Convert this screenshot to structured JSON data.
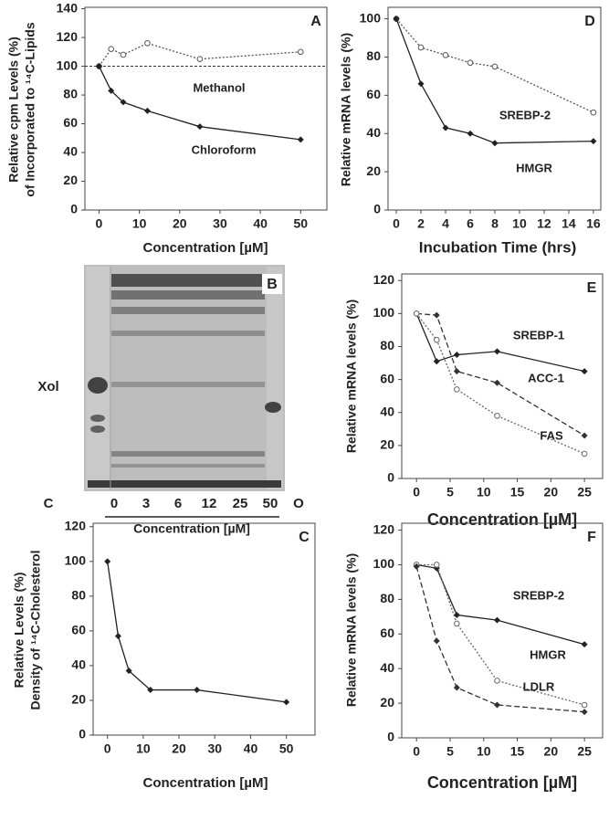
{
  "chart_data": [
    {
      "type": "line",
      "panel": "A",
      "ylabel": [
        "Relative cpm Levels (%)",
        "of Incorporated to ¹⁴C-Lipids"
      ],
      "xlabel": "Concentration [µM]",
      "x": [
        0,
        3,
        6,
        12,
        25,
        50
      ],
      "xlim": [
        -3.5,
        56.5
      ],
      "xticks": [
        0,
        10,
        20,
        30,
        40,
        50
      ],
      "ylim": [
        0,
        141
      ],
      "yticks": [
        0,
        20,
        40,
        60,
        80,
        100,
        120,
        140
      ],
      "reference_line": 100,
      "series": [
        {
          "name": "Methanol",
          "color": "#555555",
          "line_style": "dotted",
          "marker": "circle-open",
          "values": [
            100,
            112,
            108,
            116,
            105,
            110
          ]
        },
        {
          "name": "Chloroform",
          "color": "#222222",
          "line_style": "solid",
          "marker": "diamond-filled",
          "values": [
            100,
            83,
            75,
            69,
            58,
            49
          ]
        }
      ]
    },
    {
      "type": "gel",
      "panel": "B",
      "band_label": "Xol",
      "lanes": [
        "C",
        "0",
        "3",
        "6",
        "12",
        "25",
        "50",
        "O"
      ],
      "xlabel": "Concentration [µM]"
    },
    {
      "type": "line",
      "panel": "C",
      "ylabel": [
        "Relative Levels (%)",
        "Density of ¹⁴C-Cholesterol"
      ],
      "xlabel": "Concentration [µM]",
      "x": [
        0,
        3,
        6,
        12,
        25,
        50
      ],
      "xlim": [
        -4,
        58
      ],
      "xticks": [
        0,
        10,
        20,
        30,
        40,
        50
      ],
      "ylim": [
        0,
        122
      ],
      "yticks": [
        0,
        20,
        40,
        60,
        80,
        100,
        120
      ],
      "series": [
        {
          "name": null,
          "color": "#222222",
          "line_style": "solid",
          "marker": "diamond-filled",
          "values": [
            100,
            57,
            37,
            26,
            26,
            19
          ]
        }
      ]
    },
    {
      "type": "line",
      "panel": "D",
      "ylabel": [
        "Relative mRNA levels (%)"
      ],
      "xlabel": "Incubation Time (hrs)",
      "x": [
        0,
        2,
        4,
        6,
        8,
        16
      ],
      "xlim": [
        -0.67,
        16.6
      ],
      "xticks": [
        0,
        2,
        4,
        6,
        8,
        10,
        12,
        14,
        16
      ],
      "ylim": [
        0,
        106
      ],
      "yticks": [
        0,
        20,
        40,
        60,
        80,
        100
      ],
      "series": [
        {
          "name": "SREBP-2",
          "color": "#555555",
          "line_style": "dotted",
          "marker": "circle-open",
          "values": [
            100,
            85,
            81,
            77,
            75,
            51
          ]
        },
        {
          "name": "HMGR",
          "color": "#222222",
          "line_style": "solid",
          "marker": "diamond-filled",
          "values": [
            100,
            66,
            43,
            40,
            35,
            36
          ]
        }
      ]
    },
    {
      "type": "line",
      "panel": "E",
      "ylabel": [
        "Relative mRNA levels (%)"
      ],
      "xlabel": "Concentration [µM]",
      "x": [
        0,
        3,
        6,
        12,
        25
      ],
      "xlim": [
        -2.2,
        27.7
      ],
      "xticks": [
        0,
        5,
        10,
        15,
        20,
        25
      ],
      "ylim": [
        0,
        124
      ],
      "yticks": [
        0,
        20,
        40,
        60,
        80,
        100,
        120
      ],
      "series": [
        {
          "name": "SREBP-1",
          "color": "#222222",
          "line_style": "solid",
          "marker": "diamond-filled",
          "values": [
            100,
            71,
            75,
            77,
            65
          ]
        },
        {
          "name": "ACC-1",
          "color": "#333333",
          "line_style": "dashed",
          "marker": "diamond-filled",
          "values": [
            100,
            99,
            65,
            58,
            26
          ]
        },
        {
          "name": "FAS",
          "color": "#666666",
          "line_style": "dotted",
          "marker": "circle-open",
          "values": [
            100,
            84,
            54,
            38,
            15
          ]
        }
      ]
    },
    {
      "type": "line",
      "panel": "F",
      "ylabel": [
        "Relative mRNA levels (%)"
      ],
      "xlabel": "Concentration [µM]",
      "x": [
        0,
        3,
        6,
        12,
        25
      ],
      "xlim": [
        -2.2,
        27.7
      ],
      "xticks": [
        0,
        5,
        10,
        15,
        20,
        25
      ],
      "ylim": [
        0,
        124
      ],
      "yticks": [
        0,
        20,
        40,
        60,
        80,
        100,
        120
      ],
      "series": [
        {
          "name": "SREBP-2",
          "color": "#222222",
          "line_style": "solid",
          "marker": "diamond-filled",
          "values": [
            100,
            98,
            71,
            68,
            54
          ]
        },
        {
          "name": "HMGR",
          "color": "#666666",
          "line_style": "dotted",
          "marker": "circle-open",
          "values": [
            100,
            100,
            66,
            33,
            19
          ]
        },
        {
          "name": "LDLR",
          "color": "#333333",
          "line_style": "dashed",
          "marker": "diamond-filled",
          "values": [
            99,
            56,
            29,
            19,
            15
          ]
        }
      ]
    }
  ]
}
